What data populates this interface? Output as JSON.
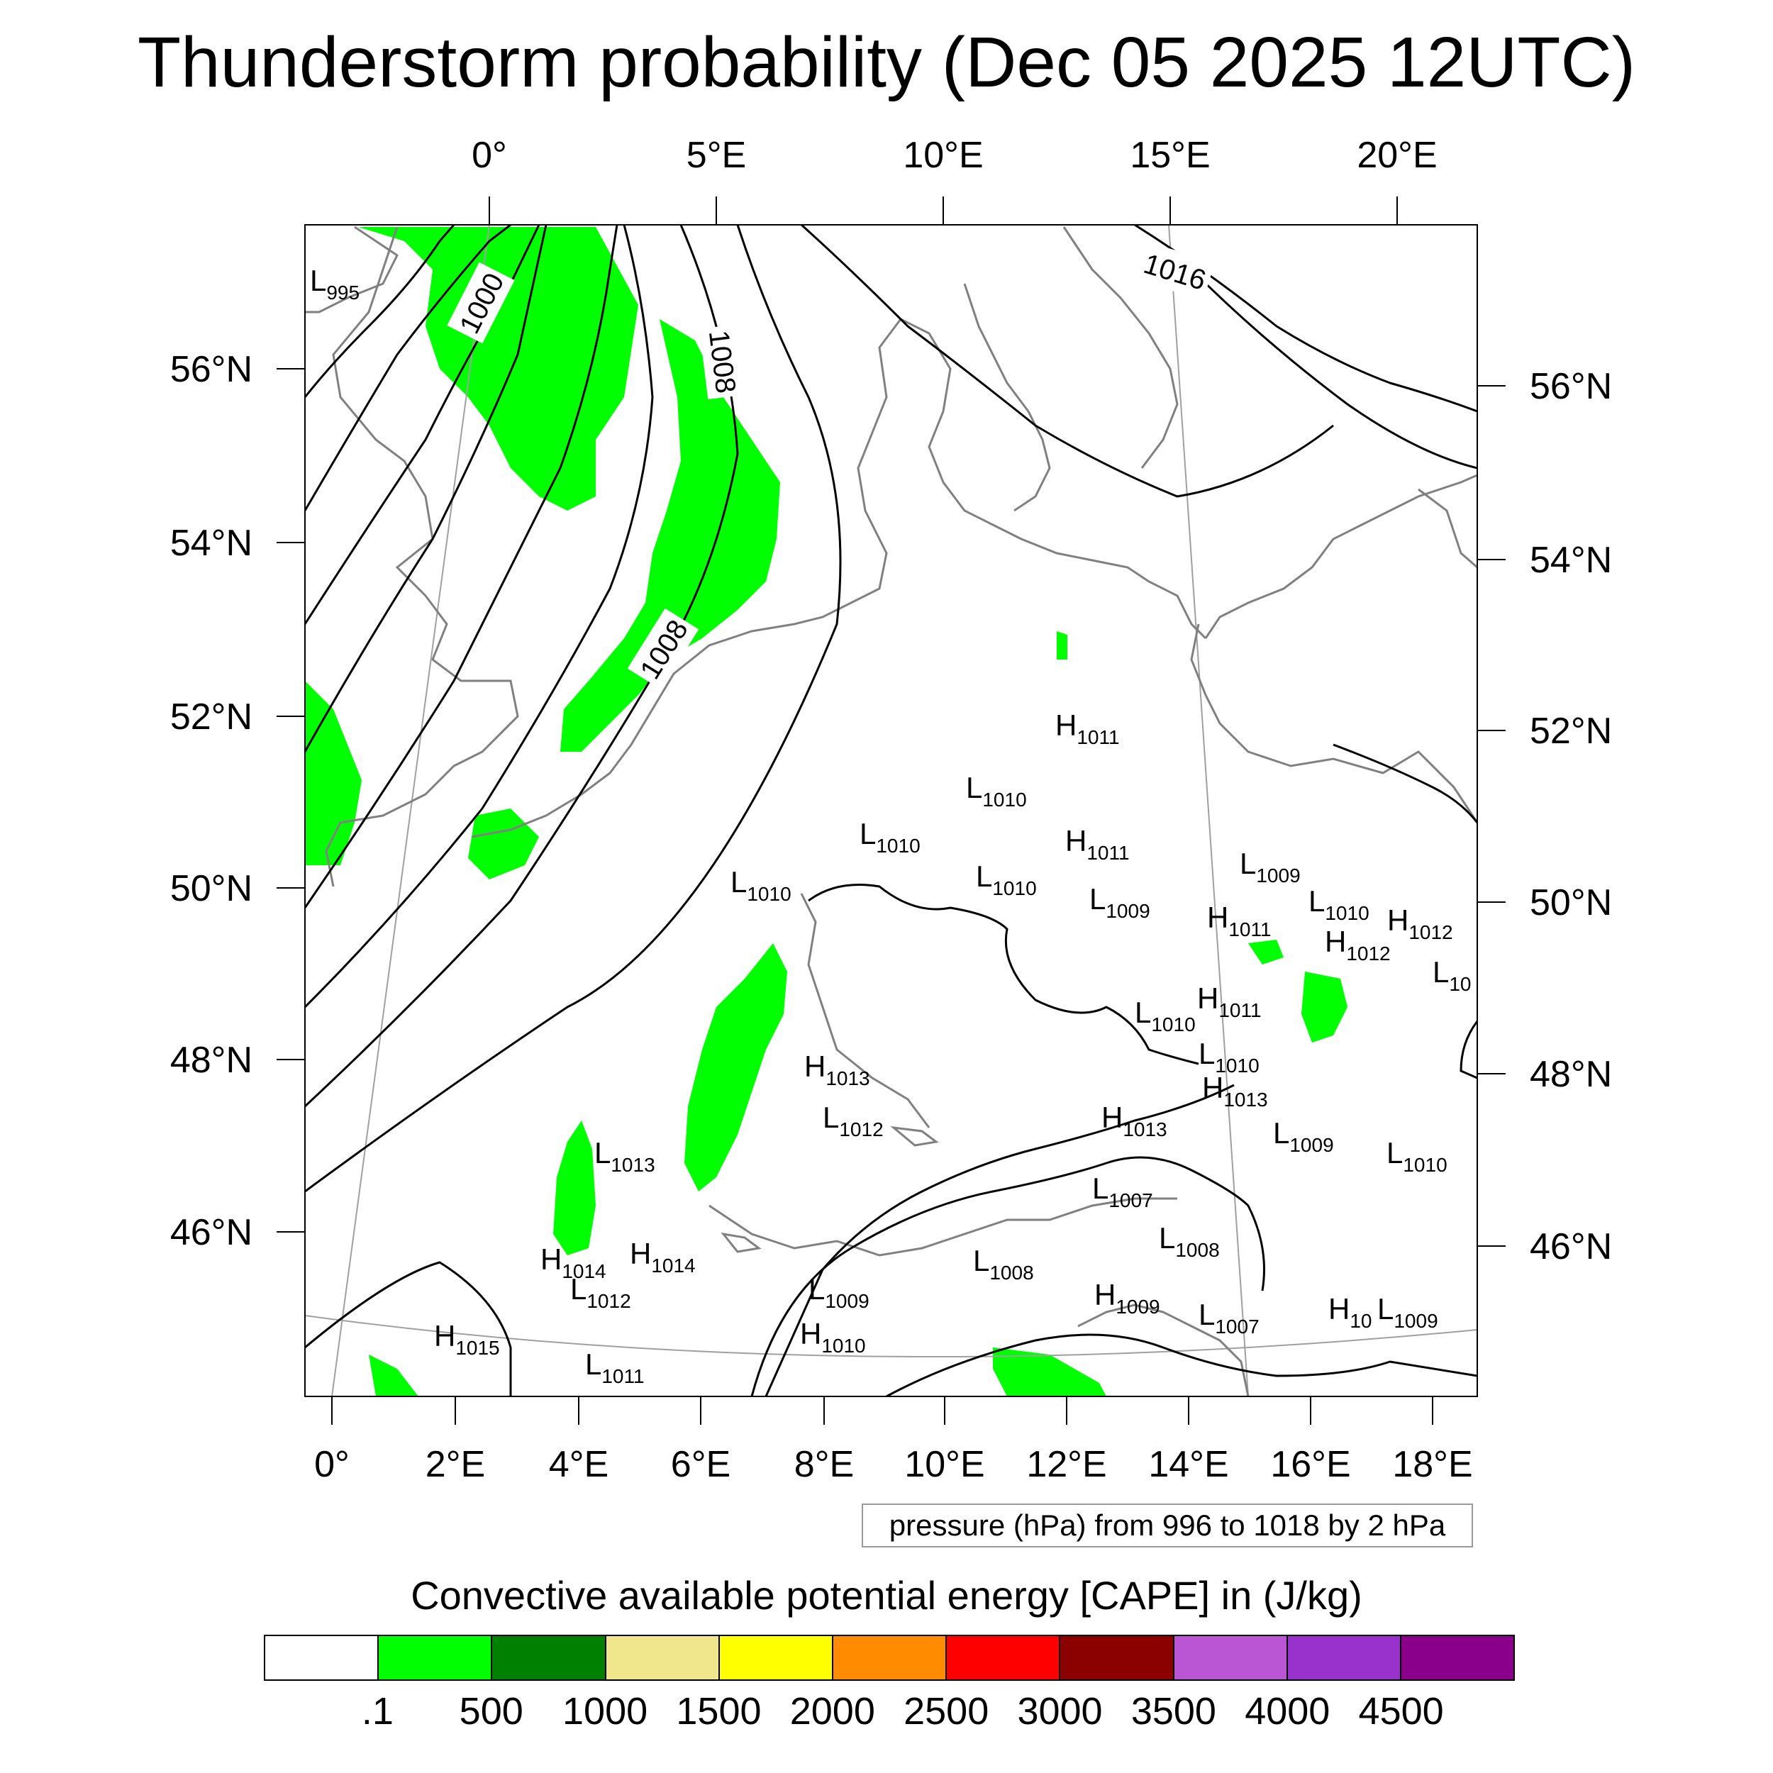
{
  "title": "Thunderstorm probability (Dec 05 2025 12UTC)",
  "top_lon_labels": [
    "0°",
    "5°E",
    "10°E",
    "15°E",
    "20°E"
  ],
  "bottom_lon_labels": [
    "0°",
    "2°E",
    "4°E",
    "6°E",
    "8°E",
    "10°E",
    "12°E",
    "14°E",
    "16°E",
    "18°E"
  ],
  "left_lat_labels": [
    "56°N",
    "54°N",
    "52°N",
    "50°N",
    "48°N",
    "46°N"
  ],
  "right_lat_labels": [
    "56°N",
    "54°N",
    "52°N",
    "50°N",
    "48°N",
    "46°N"
  ],
  "isobar_labels": [
    "1000",
    "1008",
    "1008",
    "1016"
  ],
  "pressure_centers": [
    {
      "type": "L",
      "value": "995"
    },
    {
      "type": "H",
      "value": "1011"
    },
    {
      "type": "L",
      "value": "1010"
    },
    {
      "type": "L",
      "value": "1010"
    },
    {
      "type": "H",
      "value": "1011"
    },
    {
      "type": "L",
      "value": "1010"
    },
    {
      "type": "L",
      "value": "1009"
    },
    {
      "type": "L",
      "value": "1010"
    },
    {
      "type": "L",
      "value": "1009"
    },
    {
      "type": "H",
      "value": "1011"
    },
    {
      "type": "L",
      "value": "1010"
    },
    {
      "type": "H",
      "value": "1012"
    },
    {
      "type": "H",
      "value": "1012"
    },
    {
      "type": "L",
      "value": "10"
    },
    {
      "type": "L",
      "value": "1010"
    },
    {
      "type": "H",
      "value": "1011"
    },
    {
      "type": "L",
      "value": "1010"
    },
    {
      "type": "H",
      "value": "1013"
    },
    {
      "type": "H",
      "value": "1013"
    },
    {
      "type": "L",
      "value": "1012"
    },
    {
      "type": "H",
      "value": "1013"
    },
    {
      "type": "L",
      "value": "1009"
    },
    {
      "type": "L",
      "value": "1010"
    },
    {
      "type": "L",
      "value": "1013"
    },
    {
      "type": "L",
      "value": "1007"
    },
    {
      "type": "H",
      "value": "1014"
    },
    {
      "type": "H",
      "value": "1014"
    },
    {
      "type": "L",
      "value": "1012"
    },
    {
      "type": "L",
      "value": "1008"
    },
    {
      "type": "L",
      "value": "1008"
    },
    {
      "type": "L",
      "value": "1009"
    },
    {
      "type": "H",
      "value": "1009"
    },
    {
      "type": "L",
      "value": "1007"
    },
    {
      "type": "H",
      "value": "10"
    },
    {
      "type": "L",
      "value": "1009"
    },
    {
      "type": "H",
      "value": "1015"
    },
    {
      "type": "H",
      "value": "1010"
    },
    {
      "type": "L",
      "value": "1011"
    }
  ],
  "contour_note": "pressure (hPa) from 996 to 1018 by 2 hPa",
  "legend": {
    "title": "Convective available potential energy [CAPE] in (J/kg)",
    "colors": [
      "#ffffff",
      "#00ff00",
      "#008000",
      "#f0e68c",
      "#ffff00",
      "#ff8c00",
      "#ff0000",
      "#8b0000",
      "#ba55d3",
      "#9932cc",
      "#8b008b"
    ],
    "labels": [
      ".1",
      "500",
      "1000",
      "1500",
      "2000",
      "2500",
      "3000",
      "3500",
      "4000",
      "4500"
    ]
  },
  "colors": {
    "cape_fill": "#00ff00",
    "coastline": "#808080",
    "isobar": "#000000",
    "graticule": "#a0a0a0"
  }
}
